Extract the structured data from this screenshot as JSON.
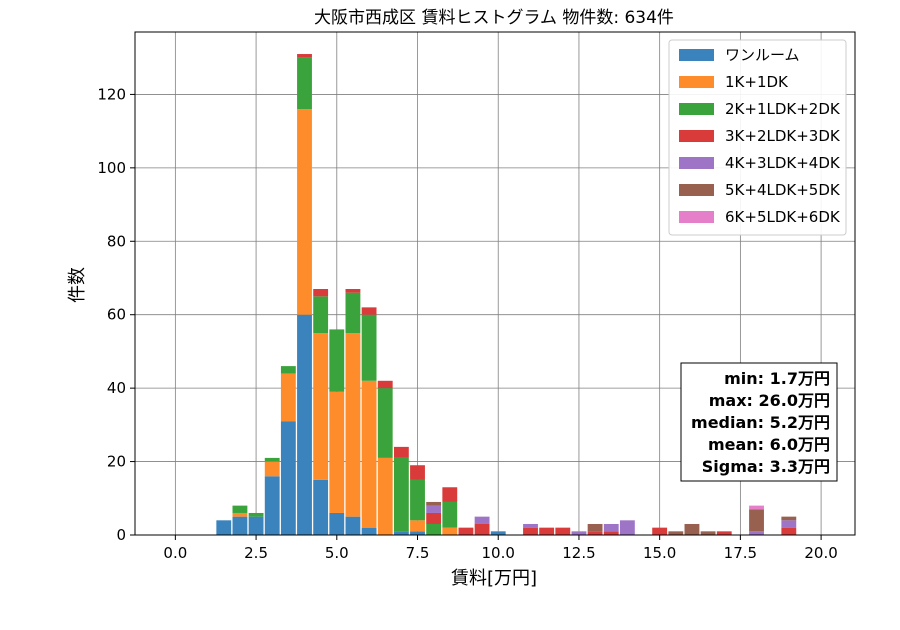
{
  "chart_data": {
    "type": "bar",
    "stacked": true,
    "title": "大阪市西成区 賃料ヒストグラム 物件数: 634件",
    "xlabel": "賃料[万円]",
    "ylabel": "件数",
    "xlim": [
      -1.25,
      21.05
    ],
    "ylim": [
      0,
      137
    ],
    "xticks": [
      0,
      2.5,
      5,
      7.5,
      10,
      12.5,
      15,
      17.5,
      20
    ],
    "xtick_labels": [
      "0.0",
      "2.5",
      "5.0",
      "7.5",
      "10.0",
      "12.5",
      "15.0",
      "17.5",
      "20.0"
    ],
    "yticks": [
      0,
      20,
      40,
      60,
      80,
      100,
      120
    ],
    "ytick_labels": [
      "0",
      "20",
      "40",
      "60",
      "80",
      "100",
      "120"
    ],
    "grid": true,
    "legend_position": "top-right",
    "bin_width": 0.5,
    "x": [
      1.5,
      2.0,
      2.5,
      3.0,
      3.5,
      4.0,
      4.5,
      5.0,
      5.5,
      6.0,
      6.5,
      7.0,
      7.5,
      8.0,
      8.5,
      9.0,
      9.5,
      10.0,
      10.5,
      11.0,
      11.5,
      12.0,
      12.5,
      13.0,
      13.5,
      14.0,
      14.5,
      15.0,
      15.5,
      16.0,
      16.5,
      17.0,
      17.5,
      18.0,
      18.5,
      19.0,
      19.5
    ],
    "series": [
      {
        "name": "ワンルーム",
        "color": "#3a83bc",
        "values": [
          4,
          5,
          5,
          16,
          31,
          60,
          15,
          6,
          5,
          2,
          0,
          1,
          1,
          0,
          0,
          0,
          0,
          1,
          0,
          0,
          0,
          0,
          0,
          0,
          0,
          0,
          0,
          0,
          0,
          0,
          0,
          0,
          0,
          0,
          0,
          0,
          0
        ]
      },
      {
        "name": "1K+1DK",
        "color": "#ff8c2a",
        "values": [
          0,
          1,
          0,
          4,
          13,
          56,
          40,
          33,
          50,
          40,
          21,
          0,
          3,
          0,
          2,
          0,
          0,
          0,
          0,
          0,
          0,
          0,
          0,
          0,
          0,
          0,
          0,
          0,
          0,
          0,
          0,
          0,
          0,
          0,
          0,
          0,
          0
        ]
      },
      {
        "name": "2K+1LDK+2DK",
        "color": "#3ba33b",
        "values": [
          0,
          2,
          1,
          1,
          2,
          14,
          10,
          17,
          11,
          18,
          19,
          20,
          11,
          3,
          7,
          0,
          0,
          0,
          0,
          0,
          0,
          0,
          0,
          0,
          0,
          0,
          0,
          0,
          0,
          0,
          0,
          0,
          0,
          0,
          0,
          0,
          0
        ]
      },
      {
        "name": "3K+2LDK+3DK",
        "color": "#d93a3a",
        "values": [
          0,
          0,
          0,
          0,
          0,
          1,
          2,
          0,
          1,
          2,
          2,
          3,
          4,
          3,
          4,
          2,
          3,
          0,
          0,
          2,
          2,
          2,
          0,
          1,
          1,
          0,
          0,
          2,
          0,
          0,
          0,
          1,
          0,
          0,
          0,
          2,
          0
        ]
      },
      {
        "name": "4K+3LDK+4DK",
        "color": "#9e74c7",
        "values": [
          0,
          0,
          0,
          0,
          0,
          0,
          0,
          0,
          0,
          0,
          0,
          0,
          0,
          2,
          0,
          0,
          2,
          0,
          0,
          1,
          0,
          0,
          1,
          0,
          2,
          4,
          0,
          0,
          0,
          0,
          0,
          0,
          0,
          1,
          0,
          2,
          0
        ]
      },
      {
        "name": "5K+4LDK+5DK",
        "color": "#97604f",
        "values": [
          0,
          0,
          0,
          0,
          0,
          0,
          0,
          0,
          0,
          0,
          0,
          0,
          0,
          1,
          0,
          0,
          0,
          0,
          0,
          0,
          0,
          0,
          0,
          2,
          0,
          0,
          0,
          0,
          1,
          3,
          1,
          0,
          0,
          6,
          0,
          1,
          0
        ]
      },
      {
        "name": "6K+5LDK+6DK",
        "color": "#e57fc9",
        "values": [
          0,
          0,
          0,
          0,
          0,
          0,
          0,
          0,
          0,
          0,
          0,
          0,
          0,
          0,
          0,
          0,
          0,
          0,
          0,
          0,
          0,
          0,
          0,
          0,
          0,
          0,
          0,
          0,
          0,
          0,
          0,
          0,
          0,
          1,
          0,
          0,
          0
        ]
      }
    ],
    "stats_box": {
      "position": "lower-right",
      "lines": [
        "min: 1.7万円",
        "max: 26.0万円",
        "median: 5.2万円",
        "mean: 6.0万円",
        "Sigma: 3.3万円"
      ]
    }
  }
}
